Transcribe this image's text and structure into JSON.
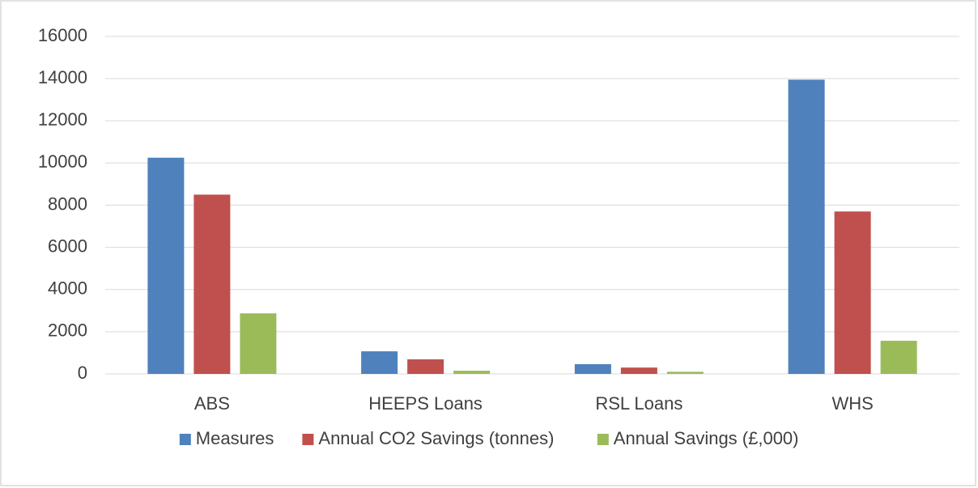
{
  "chart_data": {
    "type": "bar",
    "categories": [
      "ABS",
      "HEEPS Loans",
      "RSL Loans",
      "WHS"
    ],
    "series": [
      {
        "name": "Measures",
        "color": "#4f81bd",
        "values": [
          10250,
          1070,
          460,
          13950
        ]
      },
      {
        "name": "Annual CO2 Savings (tonnes)",
        "color": "#c0504d",
        "values": [
          8500,
          690,
          300,
          7700
        ]
      },
      {
        "name": "Annual Savings (£,000)",
        "color": "#9bbb59",
        "values": [
          2870,
          150,
          100,
          1570
        ]
      }
    ],
    "ylim": [
      0,
      16000
    ],
    "yticks": [
      0,
      2000,
      4000,
      6000,
      8000,
      10000,
      12000,
      14000,
      16000
    ],
    "grid": true,
    "legend": "bottom"
  }
}
